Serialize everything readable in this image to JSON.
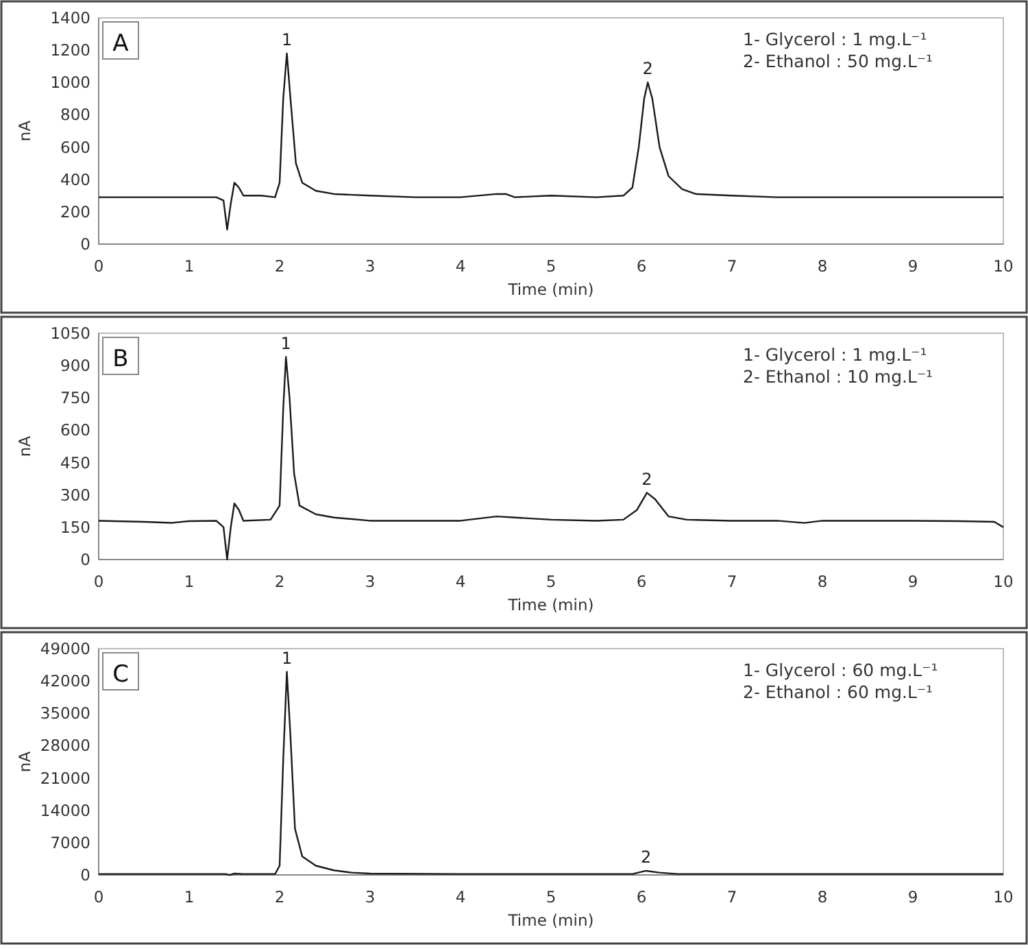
{
  "chart_data": [
    {
      "type": "line",
      "title": "A",
      "xlabel": "Time (min)",
      "ylabel": "nA",
      "xlim": [
        0,
        10
      ],
      "xticks": [
        0,
        1,
        2,
        3,
        4,
        5,
        6,
        7,
        8,
        9,
        10
      ],
      "ylim": [
        0,
        1400
      ],
      "yticks": [
        0,
        200,
        400,
        600,
        800,
        1000,
        1200,
        1400
      ],
      "grid": false,
      "marker": "none",
      "line_style": "solid",
      "series": [
        {
          "color": "#1a1a1a",
          "x": [
            0,
            0.3,
            0.6,
            1.0,
            1.3,
            1.38,
            1.42,
            1.46,
            1.5,
            1.55,
            1.6,
            1.8,
            1.95,
            2.0,
            2.04,
            2.08,
            2.12,
            2.18,
            2.25,
            2.4,
            2.6,
            3.0,
            3.5,
            4.0,
            4.4,
            4.5,
            4.6,
            5.0,
            5.5,
            5.8,
            5.9,
            5.97,
            6.03,
            6.07,
            6.12,
            6.2,
            6.3,
            6.45,
            6.6,
            7.0,
            7.5,
            8.0,
            8.5,
            9.0,
            9.5,
            10
          ],
          "values": [
            290,
            290,
            290,
            290,
            290,
            270,
            90,
            250,
            380,
            350,
            300,
            300,
            290,
            380,
            900,
            1180,
            900,
            500,
            380,
            330,
            310,
            300,
            290,
            290,
            310,
            310,
            290,
            300,
            290,
            300,
            350,
            600,
            900,
            1000,
            900,
            600,
            420,
            340,
            310,
            300,
            290,
            290,
            290,
            290,
            290,
            290
          ]
        }
      ],
      "annotations": [
        {
          "text": "1",
          "x": 2.08,
          "y": 1180
        },
        {
          "text": "2",
          "x": 6.07,
          "y": 1000
        },
        "1- Glycerol : 1 mg.L⁻¹",
        "2- Ethanol : 50 mg.L⁻¹"
      ]
    },
    {
      "type": "line",
      "title": "B",
      "xlabel": "Time (min)",
      "ylabel": "nA",
      "xlim": [
        0,
        10
      ],
      "xticks": [
        0,
        1,
        2,
        3,
        4,
        5,
        6,
        7,
        8,
        9,
        10
      ],
      "ylim": [
        0,
        1050
      ],
      "yticks": [
        0,
        150,
        300,
        450,
        600,
        750,
        900,
        1050
      ],
      "grid": false,
      "marker": "none",
      "line_style": "solid",
      "series": [
        {
          "color": "#1a1a1a",
          "x": [
            0,
            0.5,
            0.8,
            1.0,
            1.3,
            1.38,
            1.42,
            1.46,
            1.5,
            1.55,
            1.6,
            1.9,
            2.0,
            2.04,
            2.07,
            2.11,
            2.16,
            2.22,
            2.4,
            2.6,
            3.0,
            3.5,
            4.0,
            4.4,
            4.6,
            5.0,
            5.5,
            5.8,
            5.95,
            6.06,
            6.15,
            6.3,
            6.5,
            7.0,
            7.5,
            7.8,
            8.0,
            8.5,
            9.0,
            9.5,
            9.9,
            10
          ],
          "values": [
            180,
            175,
            170,
            178,
            180,
            150,
            0,
            150,
            260,
            230,
            180,
            185,
            250,
            700,
            940,
            750,
            400,
            250,
            210,
            195,
            180,
            180,
            180,
            200,
            195,
            185,
            180,
            185,
            230,
            310,
            280,
            200,
            185,
            180,
            180,
            170,
            180,
            180,
            180,
            178,
            175,
            150
          ]
        }
      ],
      "annotations": [
        {
          "text": "1",
          "x": 2.07,
          "y": 940
        },
        {
          "text": "2",
          "x": 6.06,
          "y": 310
        },
        "1- Glycerol : 1 mg.L⁻¹",
        "2- Ethanol : 10 mg.L⁻¹"
      ]
    },
    {
      "type": "line",
      "title": "C",
      "xlabel": "Time (min)",
      "ylabel": "nA",
      "xlim": [
        0,
        10
      ],
      "xticks": [
        0,
        1,
        2,
        3,
        4,
        5,
        6,
        7,
        8,
        9,
        10
      ],
      "ylim": [
        0,
        49000
      ],
      "yticks": [
        0,
        7000,
        14000,
        21000,
        28000,
        35000,
        42000,
        49000
      ],
      "grid": false,
      "marker": "none",
      "line_style": "solid",
      "series": [
        {
          "color": "#1a1a1a",
          "x": [
            0,
            1.0,
            1.4,
            1.45,
            1.5,
            1.6,
            1.95,
            2.0,
            2.04,
            2.08,
            2.12,
            2.17,
            2.25,
            2.4,
            2.6,
            2.8,
            3.0,
            4.0,
            5.0,
            5.9,
            6.05,
            6.2,
            6.4,
            7.0,
            8.0,
            9.0,
            10
          ],
          "values": [
            200,
            200,
            200,
            0,
            300,
            200,
            200,
            2000,
            25000,
            44000,
            30000,
            10000,
            4000,
            2000,
            1000,
            500,
            300,
            200,
            200,
            200,
            900,
            500,
            200,
            200,
            200,
            200,
            200
          ]
        }
      ],
      "annotations": [
        {
          "text": "1",
          "x": 2.08,
          "y": 44000
        },
        {
          "text": "2",
          "x": 6.05,
          "y": 900
        },
        "1- Glycerol : 60 mg.L⁻¹",
        "2- Ethanol : 60 mg.L⁻¹"
      ]
    }
  ]
}
